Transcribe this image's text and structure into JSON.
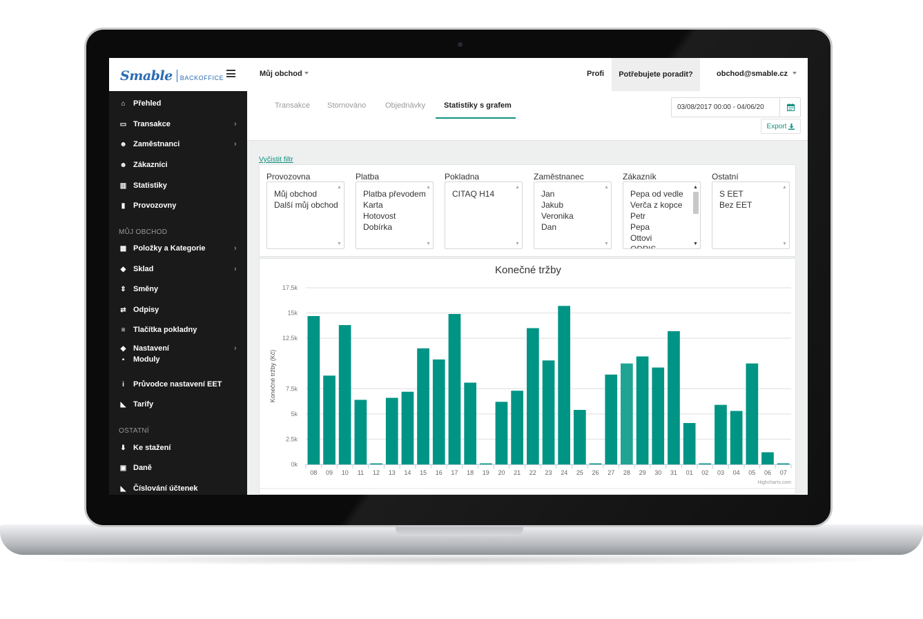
{
  "topbar": {
    "logo_main": "Smable",
    "logo_sub": "BACKOFFICE",
    "store_menu": "Můj obchod",
    "nav_profi": "Profi",
    "nav_help": "Potřebujete poradit?",
    "nav_user": "obchod@smable.cz"
  },
  "sidebar": {
    "items_top": [
      {
        "label": "Přehled",
        "icon": "home-icon",
        "glyph": "⌂",
        "chevron": false
      },
      {
        "label": "Transakce",
        "icon": "inbox-icon",
        "glyph": "▭",
        "chevron": true
      },
      {
        "label": "Zaměstnanci",
        "icon": "users-icon",
        "glyph": "☻",
        "chevron": true
      },
      {
        "label": "Zákazníci",
        "icon": "users-icon",
        "glyph": "☻",
        "chevron": false
      },
      {
        "label": "Statistiky",
        "icon": "bar-chart-icon",
        "glyph": "▥",
        "chevron": false
      },
      {
        "label": "Provozovny",
        "icon": "building-icon",
        "glyph": "▮",
        "chevron": false
      }
    ],
    "section_store": "MŮJ OBCHOD",
    "items_store": [
      {
        "label": "Položky a Kategorie",
        "icon": "table-icon",
        "glyph": "▦",
        "chevron": true
      },
      {
        "label": "Sklad",
        "icon": "cubes-icon",
        "glyph": "◆",
        "chevron": true
      },
      {
        "label": "Směny",
        "icon": "sort-icon",
        "glyph": "⇕",
        "chevron": false
      },
      {
        "label": "Odpisy",
        "icon": "exchange-icon",
        "glyph": "⇄",
        "chevron": false
      },
      {
        "label": "Tlačítka pokladny",
        "icon": "list-icon",
        "glyph": "≡",
        "chevron": false
      },
      {
        "label": "Nastavení",
        "icon": "cubes-icon",
        "glyph": "◆",
        "chevron": true
      },
      {
        "label": "Moduly",
        "icon": "puzzle-icon",
        "glyph": "▪",
        "chevron": false
      },
      {
        "label": "Průvodce nastavení EET",
        "icon": "info-icon",
        "glyph": "i",
        "chevron": false
      },
      {
        "label": "Tarify",
        "icon": "tags-icon",
        "glyph": "◣",
        "chevron": false
      }
    ],
    "section_other": "OSTATNÍ",
    "items_other": [
      {
        "label": "Ke stažení",
        "icon": "download-icon",
        "glyph": "⬇",
        "chevron": false
      },
      {
        "label": "Daně",
        "icon": "money-icon",
        "glyph": "▣",
        "chevron": false
      },
      {
        "label": "Číslování účtenek",
        "icon": "tag-icon",
        "glyph": "◣",
        "chevron": false
      }
    ],
    "chevron": "›"
  },
  "tabs": [
    {
      "label": "Transakce",
      "active": false
    },
    {
      "label": "Stornováno",
      "active": false
    },
    {
      "label": "Objednávky",
      "active": false
    },
    {
      "label": "Statistiky s grafem",
      "active": true
    }
  ],
  "date_range": "03/08/2017 00:00 - 04/06/20",
  "export_label": "Export",
  "clear_filter": "Vyčistit filtr",
  "filters": [
    {
      "label": "Provozovna",
      "options": [
        "Můj obchod",
        "Další můj obchod"
      ]
    },
    {
      "label": "Platba",
      "options": [
        "Platba převodem",
        "Karta",
        "Hotovost",
        "Dobírka"
      ]
    },
    {
      "label": "Pokladna",
      "options": [
        "CITAQ H14"
      ]
    },
    {
      "label": "Zaměstnanec",
      "options": [
        "Jan",
        "Jakub",
        "Veronika",
        "Dan"
      ]
    },
    {
      "label": "Zákazník",
      "options": [
        "Pepa od vedle",
        "Verča z kopce",
        "Petr",
        "Pepa",
        "Ottovi",
        "ODPIS"
      ]
    },
    {
      "label": "Ostatní",
      "options": [
        "S EET",
        "Bez EET"
      ]
    }
  ],
  "colors": {
    "accent": "#12907e",
    "bar": "#009485",
    "bar_hover": "#1fa494",
    "sidebar": "#1a1a1a"
  },
  "chart_data": {
    "type": "bar",
    "title": "Konečné tržby",
    "ylabel": "Konečné tržby (Kč)",
    "ylim": [
      0,
      17500
    ],
    "yticks": [
      "0k",
      "2.5k",
      "5k",
      "7.5k",
      "12.5k",
      "15k",
      "17.5k"
    ],
    "categories": [
      "08",
      "09",
      "10",
      "11",
      "12",
      "13",
      "14",
      "15",
      "16",
      "17",
      "18",
      "19",
      "20",
      "21",
      "22",
      "23",
      "24",
      "25",
      "26",
      "27",
      "28",
      "29",
      "30",
      "31",
      "01",
      "02",
      "03",
      "04",
      "05",
      "06",
      "07"
    ],
    "values": [
      14700,
      8800,
      13800,
      6400,
      100,
      6600,
      7200,
      11500,
      10400,
      14900,
      8100,
      100,
      6200,
      7300,
      13500,
      10300,
      15700,
      5400,
      100,
      8900,
      10000,
      10700,
      9600,
      13200,
      4100,
      100,
      5900,
      5300,
      10000,
      1200,
      100
    ],
    "grid": true,
    "credit": "Highcharts.com"
  }
}
